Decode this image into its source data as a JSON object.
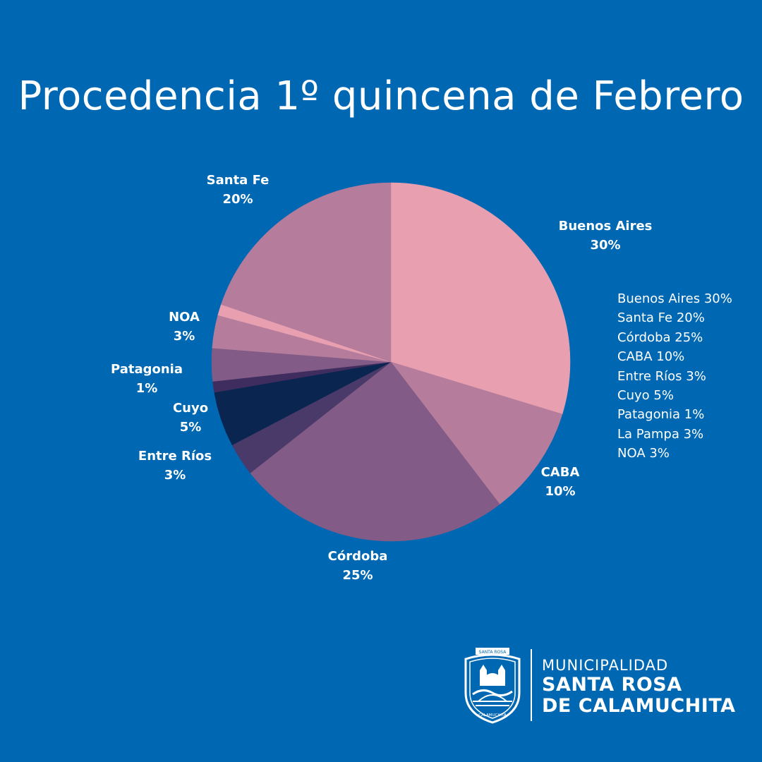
{
  "title": "Procedencia 1º quincena de Febrero",
  "chart_data": {
    "type": "pie",
    "slices": [
      {
        "name": "Buenos Aires",
        "value": 30,
        "label": "30%",
        "color": "#e8a0b0"
      },
      {
        "name": "CABA",
        "value": 10,
        "label": "10%",
        "color": "#b57c9c"
      },
      {
        "name": "Córdoba",
        "value": 25,
        "label": "25%",
        "color": "#825b86"
      },
      {
        "name": "Entre Ríos",
        "value": 3,
        "label": "3%",
        "color": "#4a3a6a"
      },
      {
        "name": "Cuyo",
        "value": 5,
        "label": "5%",
        "color": "#0a2550"
      },
      {
        "name": "Patagonia",
        "value": 1,
        "label": "1%",
        "color": "#3e2d5e"
      },
      {
        "name": "",
        "value": 3,
        "label": "",
        "color": "#825b86"
      },
      {
        "name": "NOA",
        "value": 3,
        "label": "3%",
        "color": "#b57c9c"
      },
      {
        "name": "",
        "value": 1,
        "label": "",
        "color": "#e8a0b0"
      },
      {
        "name": "Santa Fe",
        "value": 20,
        "label": "20%",
        "color": "#b57c9c"
      }
    ]
  },
  "legend": [
    "Buenos Aires 30%",
    "Santa Fe 20%",
    "Córdoba 25%",
    "CABA 10%",
    "Entre Ríos 3%",
    "Cuyo 5%",
    "Patagonia 1%",
    "La Pampa 3%",
    "NOA 3%"
  ],
  "logo": {
    "line1": "MUNICIPALIDAD",
    "line2": "SANTA ROSA",
    "line3": "DE CALAMUCHITA",
    "emblem_text_top": "SANTA ROSA",
    "emblem_text_bottom": "CALAMUCHITA"
  }
}
